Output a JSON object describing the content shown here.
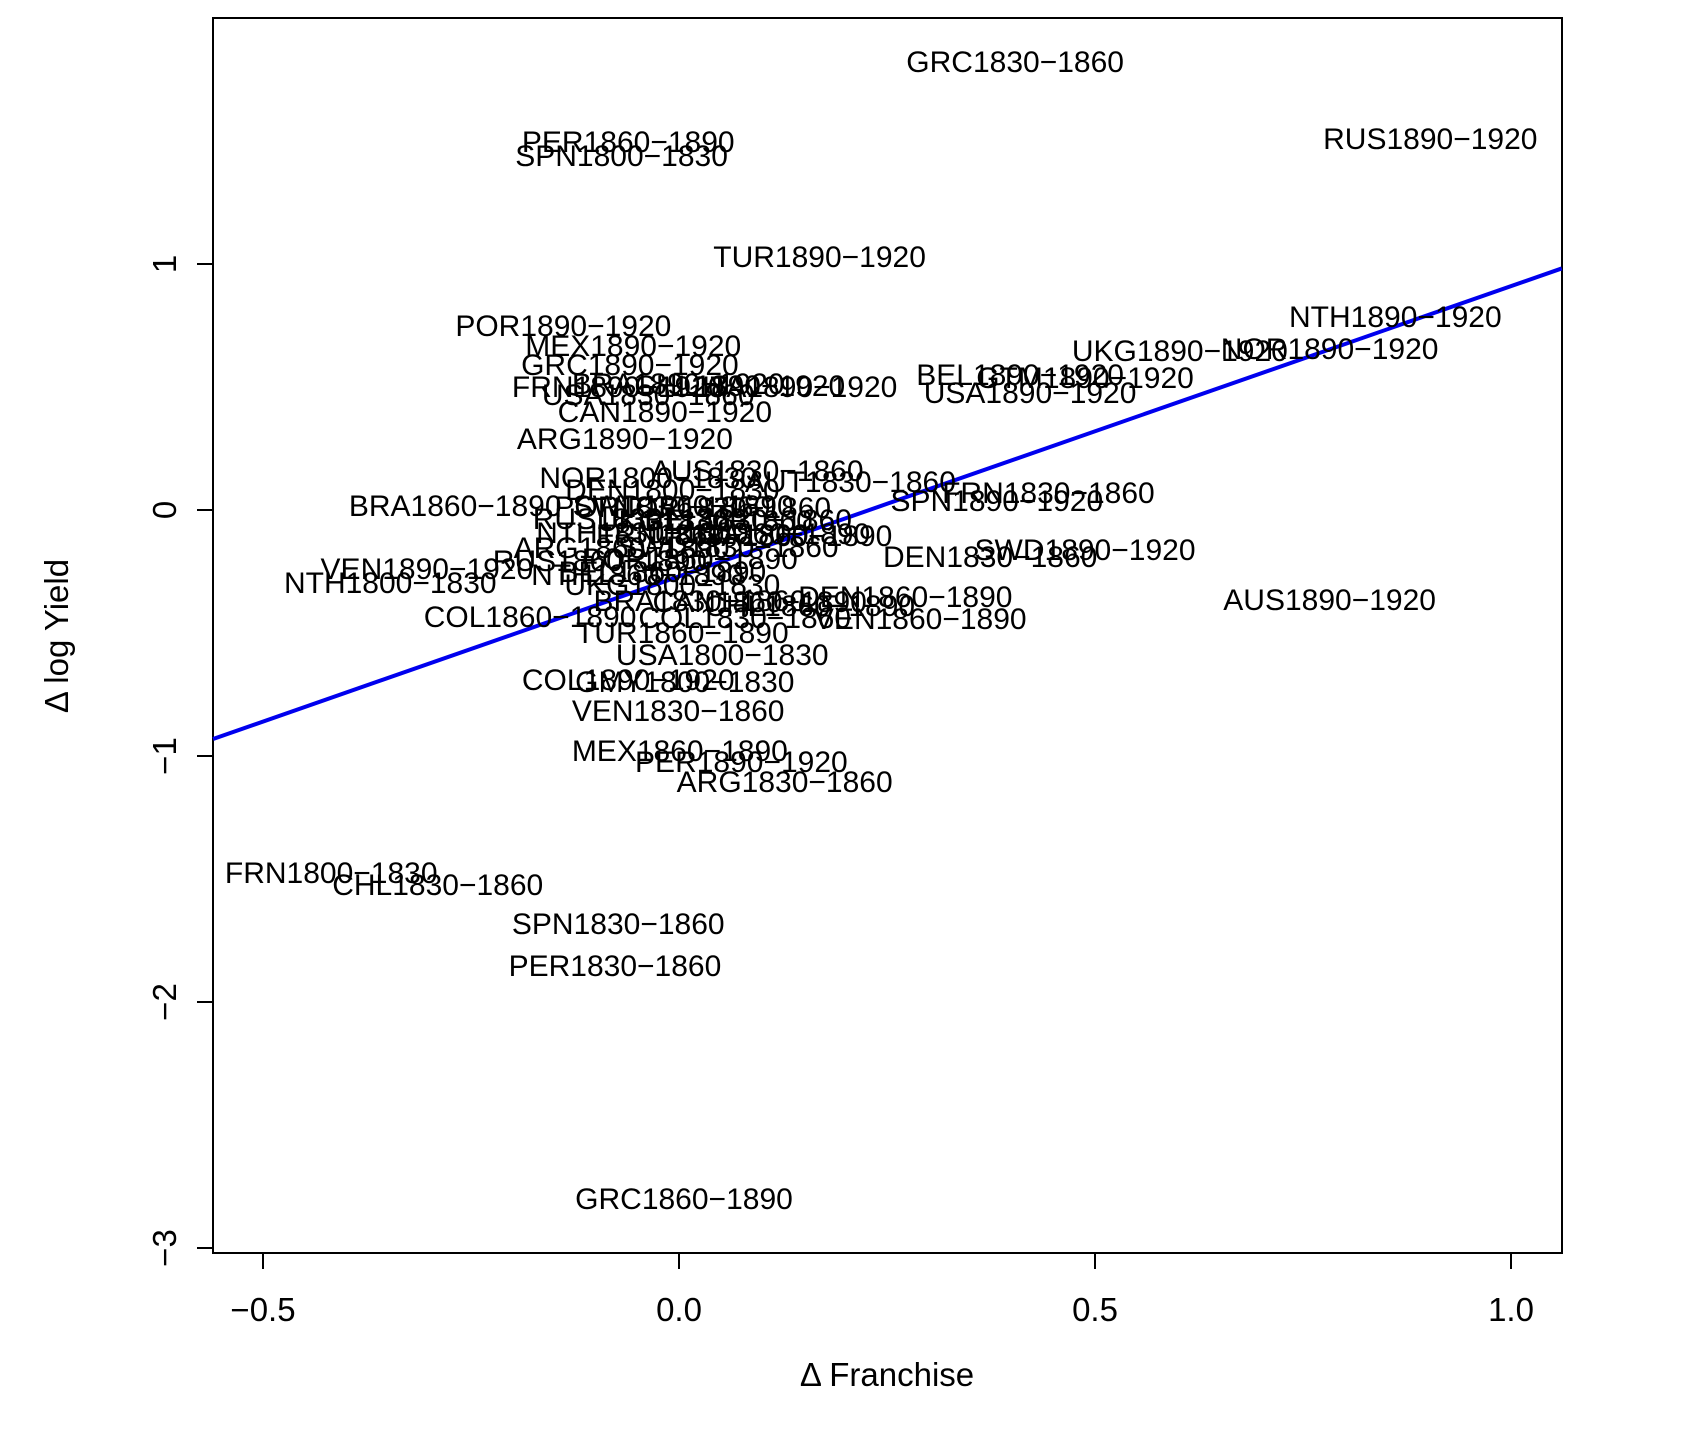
{
  "chart_data": {
    "type": "scatter",
    "title": "",
    "xlabel": "Δ Franchise",
    "ylabel": "Δ log Yield",
    "xlim": [
      -0.56,
      1.06
    ],
    "ylim": [
      -3.02,
      2.0
    ],
    "grid": false,
    "legend": "none",
    "x_ticks": [
      -0.5,
      0.0,
      0.5,
      1.0
    ],
    "x_tick_labels": [
      "−0.5",
      "0.0",
      "0.5",
      "1.0"
    ],
    "y_ticks": [
      1,
      0,
      -1,
      -2,
      -3
    ],
    "y_tick_labels": [
      "1",
      "0",
      "−1",
      "−2",
      "−3"
    ],
    "regression_line": {
      "slope": 1.18,
      "intercept": -0.27,
      "color": "#0000ee",
      "x_start": -0.56,
      "x_end": 1.061
    },
    "point_color": "#000000",
    "points": [
      {
        "label": "GRC1830−1860",
        "x": 0.404,
        "y": 1.817
      },
      {
        "label": "PER1860−1890",
        "x": -0.061,
        "y": 1.492
      },
      {
        "label": "SPN1800−1830",
        "x": -0.069,
        "y": 1.435
      },
      {
        "label": "RUS1890−1920",
        "x": 0.903,
        "y": 1.504
      },
      {
        "label": "TUR1890−1920",
        "x": 0.169,
        "y": 1.024
      },
      {
        "label": "POR1890−1920",
        "x": -0.139,
        "y": 0.744
      },
      {
        "label": "MEX1890−1920",
        "x": -0.055,
        "y": 0.663
      },
      {
        "label": "GRC1890−1920",
        "x": -0.059,
        "y": 0.585
      },
      {
        "label": "FRN1890−1920",
        "x": -0.073,
        "y": 0.496
      },
      {
        "label": "BRA1890−1920",
        "x": -0.001,
        "y": 0.508
      },
      {
        "label": "CHL1890−1920",
        "x": 0.073,
        "y": 0.5
      },
      {
        "label": "USA1830−1860",
        "x": -0.037,
        "y": 0.463
      },
      {
        "label": "ITA1890−1920",
        "x": 0.145,
        "y": 0.496
      },
      {
        "label": "CAN1890−1920",
        "x": -0.017,
        "y": 0.394
      },
      {
        "label": "ARG1890−1920",
        "x": -0.065,
        "y": 0.285
      },
      {
        "label": "BEL1890−1920",
        "x": 0.41,
        "y": 0.545
      },
      {
        "label": "GTM1890−1920",
        "x": 0.488,
        "y": 0.533
      },
      {
        "label": "UKG1890−1920",
        "x": 0.602,
        "y": 0.642
      },
      {
        "label": "USA1890−1920",
        "x": 0.422,
        "y": 0.472
      },
      {
        "label": "NOR1890−1920",
        "x": 0.782,
        "y": 0.65
      },
      {
        "label": "NTH1890−1920",
        "x": 0.861,
        "y": 0.78
      },
      {
        "label": "AUS1830−1860",
        "x": 0.094,
        "y": 0.154
      },
      {
        "label": "AUT1830−1860",
        "x": 0.206,
        "y": 0.11
      },
      {
        "label": "NOR1800−1830",
        "x": -0.037,
        "y": 0.126
      },
      {
        "label": "DEN1800−1830",
        "x": -0.008,
        "y": 0.077
      },
      {
        "label": "BRA1860−1890",
        "x": -0.269,
        "y": 0.012
      },
      {
        "label": "RUS1830−1860",
        "x": -0.047,
        "y": -0.041
      },
      {
        "label": "UKG1830−1860",
        "x": 0.031,
        "y": -0.049
      },
      {
        "label": "POR1830−1860",
        "x": -0.02,
        "y": 0.008
      },
      {
        "label": "SWD1860−1890",
        "x": 0.005,
        "y": 0.012
      },
      {
        "label": "NOR1830−1860",
        "x": 0.052,
        "y": 0.004
      },
      {
        "label": "BEL1830−1860",
        "x": 0.083,
        "y": -0.045
      },
      {
        "label": "NTH1830−1860",
        "x": -0.044,
        "y": -0.098
      },
      {
        "label": "FRN1860−1890",
        "x": 0.028,
        "y": -0.106
      },
      {
        "label": "UKG1860−1890",
        "x": 0.1,
        "y": -0.102
      },
      {
        "label": "ITA1860−1890",
        "x": 0.139,
        "y": -0.11
      },
      {
        "label": "ARG1860−1890",
        "x": -0.069,
        "y": -0.159
      },
      {
        "label": "SWD1830−1860",
        "x": 0.059,
        "y": -0.154
      },
      {
        "label": "POR1860−1890",
        "x": 0.013,
        "y": -0.203
      },
      {
        "label": "RUS1860−1890",
        "x": -0.095,
        "y": -0.211
      },
      {
        "label": "BEL1860−1890",
        "x": -0.02,
        "y": -0.256
      },
      {
        "label": "UKG1800−1830",
        "x": -0.008,
        "y": -0.309
      },
      {
        "label": "NTH1860−1890",
        "x": -0.05,
        "y": -0.268
      },
      {
        "label": "SPN1890−1920",
        "x": 0.382,
        "y": 0.033
      },
      {
        "label": "FRN1830−1860",
        "x": 0.444,
        "y": 0.065
      },
      {
        "label": "DEN1830−1860",
        "x": 0.374,
        "y": -0.195
      },
      {
        "label": "SWD1890−1920",
        "x": 0.488,
        "y": -0.167
      },
      {
        "label": "DEN1860−1890",
        "x": 0.272,
        "y": -0.358
      },
      {
        "label": "VEN1860−1890",
        "x": 0.29,
        "y": -0.447
      },
      {
        "label": "CHL1860−1890",
        "x": 0.157,
        "y": -0.394
      },
      {
        "label": "CAN1860−1890",
        "x": 0.097,
        "y": -0.378
      },
      {
        "label": "BRA1830−1860",
        "x": 0.025,
        "y": -0.374
      },
      {
        "label": "TUR1860−1890",
        "x": 0.004,
        "y": -0.504
      },
      {
        "label": "COL1830−1860",
        "x": 0.079,
        "y": -0.443
      },
      {
        "label": "VEN1890−1920",
        "x": -0.303,
        "y": -0.244
      },
      {
        "label": "NTH1800−1830",
        "x": -0.347,
        "y": -0.301
      },
      {
        "label": "COL1860−1890",
        "x": -0.179,
        "y": -0.439
      },
      {
        "label": "USA1800−1830",
        "x": 0.052,
        "y": -0.593
      },
      {
        "label": "COL1890−1920",
        "x": -0.061,
        "y": -0.695
      },
      {
        "label": "GMY1800−1830",
        "x": 0.007,
        "y": -0.703
      },
      {
        "label": "VEN1830−1860",
        "x": -0.001,
        "y": -0.821
      },
      {
        "label": "MEX1860−1890",
        "x": 0.001,
        "y": -0.984
      },
      {
        "label": "PER1890−1920",
        "x": 0.075,
        "y": -1.028
      },
      {
        "label": "ARG1830−1860",
        "x": 0.127,
        "y": -1.11
      },
      {
        "label": "FRN1800−1830",
        "x": -0.418,
        "y": -1.48
      },
      {
        "label": "CHL1830−1860",
        "x": -0.29,
        "y": -1.528
      },
      {
        "label": "SPN1830−1860",
        "x": -0.073,
        "y": -1.687
      },
      {
        "label": "PER1830−1860",
        "x": -0.077,
        "y": -1.858
      },
      {
        "label": "GRC1860−1890",
        "x": 0.006,
        "y": -2.805
      },
      {
        "label": "AUS1890−1920",
        "x": 0.782,
        "y": -0.37
      }
    ]
  }
}
